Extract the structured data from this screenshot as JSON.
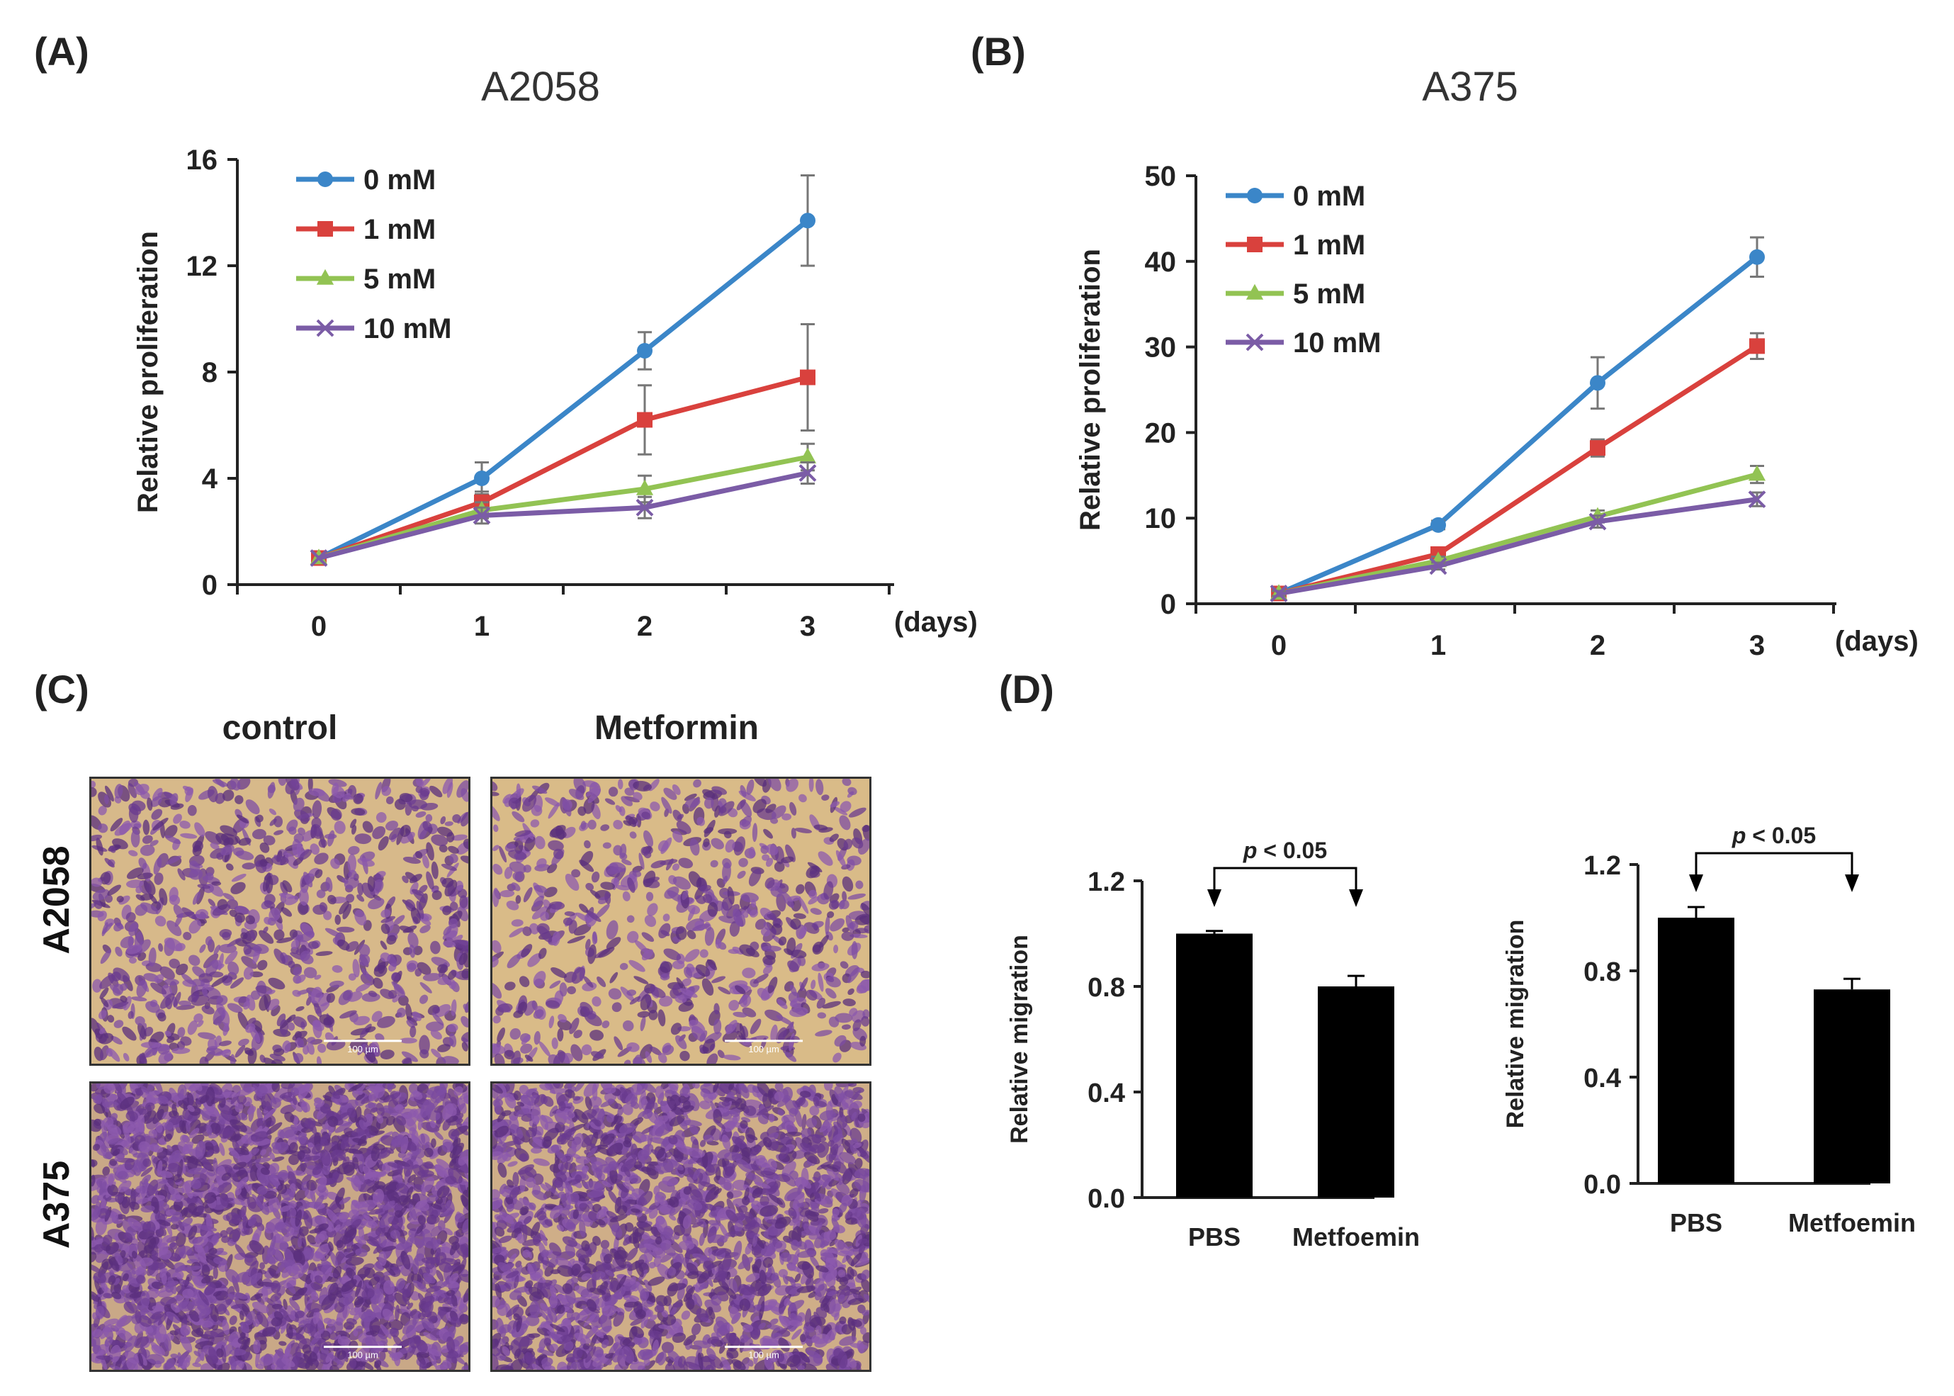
{
  "panels": {
    "A": {
      "label": "(A)",
      "chart": {
        "type": "line",
        "title": "A2058",
        "ylabel": "Relative proliferation",
        "xunit": "(days)",
        "x": [
          0,
          1,
          2,
          3
        ],
        "ylim": [
          0,
          16
        ],
        "yticks": [
          0,
          4,
          8,
          12,
          16
        ],
        "legend_position": "top-left",
        "series": [
          {
            "name": "0 mM",
            "color": "#3b86c8",
            "marker": "circle",
            "values": [
              1.0,
              4.0,
              8.8,
              13.7
            ],
            "errors": [
              0.1,
              0.6,
              0.7,
              1.7
            ]
          },
          {
            "name": "1 mM",
            "color": "#d9413d",
            "marker": "square",
            "values": [
              1.0,
              3.1,
              6.2,
              7.8
            ],
            "errors": [
              0.1,
              0.4,
              1.3,
              2.0
            ]
          },
          {
            "name": "5 mM",
            "color": "#92c353",
            "marker": "triangle",
            "values": [
              1.0,
              2.8,
              3.6,
              4.8
            ],
            "errors": [
              0.1,
              0.3,
              0.5,
              0.5
            ]
          },
          {
            "name": "10 mM",
            "color": "#7b5ca6",
            "marker": "x",
            "values": [
              1.0,
              2.6,
              2.9,
              4.2
            ],
            "errors": [
              0.1,
              0.3,
              0.4,
              0.4
            ]
          }
        ]
      }
    },
    "B": {
      "label": "(B)",
      "chart": {
        "type": "line",
        "title": "A375",
        "ylabel": "Relative proliferation",
        "xunit": "(days)",
        "x": [
          0,
          1,
          2,
          3
        ],
        "ylim": [
          0,
          50
        ],
        "yticks": [
          0,
          10,
          20,
          30,
          40,
          50
        ],
        "legend_position": "top-left",
        "series": [
          {
            "name": "0 mM",
            "color": "#3b86c8",
            "marker": "circle",
            "values": [
              1.2,
              9.2,
              25.8,
              40.5
            ],
            "errors": [
              0.3,
              0.5,
              3.0,
              2.3
            ]
          },
          {
            "name": "1 mM",
            "color": "#d9413d",
            "marker": "square",
            "values": [
              1.2,
              5.8,
              18.2,
              30.1
            ],
            "errors": [
              0.3,
              0.5,
              1.0,
              1.5
            ]
          },
          {
            "name": "5 mM",
            "color": "#92c353",
            "marker": "triangle",
            "values": [
              1.2,
              5.0,
              10.2,
              15.1
            ],
            "errors": [
              0.3,
              0.5,
              0.7,
              1.0
            ]
          },
          {
            "name": "10 mM",
            "color": "#7b5ca6",
            "marker": "x",
            "values": [
              1.2,
              4.4,
              9.6,
              12.2
            ],
            "errors": [
              0.3,
              0.4,
              0.7,
              0.8
            ]
          }
        ]
      }
    },
    "C": {
      "label": "(C)",
      "col_headers": [
        "control",
        "Metformin"
      ],
      "row_headers": [
        "A2058",
        "A375"
      ],
      "scale_bar_label": "100 µm"
    },
    "D": {
      "label": "(D)",
      "charts": [
        {
          "type": "bar",
          "ylabel": "Relative migration",
          "categories": [
            "PBS",
            "Metfoemin"
          ],
          "values": [
            1.0,
            0.8
          ],
          "errors": [
            0.01,
            0.04
          ],
          "ylim": [
            0,
            1.2
          ],
          "yticks": [
            "0.0",
            "0.4",
            "0.8",
            "1.2"
          ],
          "annotation": {
            "p": "p",
            "rest": " < 0.05"
          },
          "bar_color": "#000000"
        },
        {
          "type": "bar",
          "ylabel": "Relative migration",
          "categories": [
            "PBS",
            "Metfoemin"
          ],
          "values": [
            1.0,
            0.73
          ],
          "errors": [
            0.04,
            0.04
          ],
          "ylim": [
            0,
            1.2
          ],
          "yticks": [
            "0.0",
            "0.4",
            "0.8",
            "1.2"
          ],
          "annotation": {
            "p": "p",
            "rest": " < 0.05"
          },
          "bar_color": "#000000"
        }
      ]
    }
  }
}
